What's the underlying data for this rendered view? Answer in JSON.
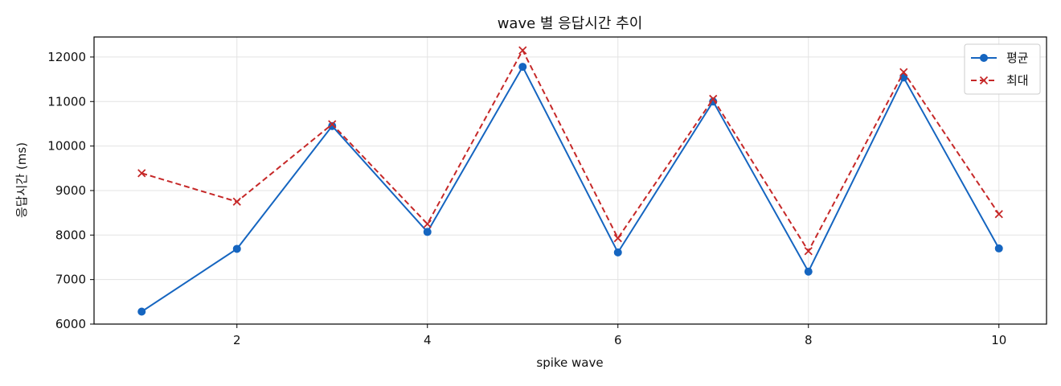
{
  "chart_data": {
    "type": "line",
    "title": "wave 별 응답시간 추이",
    "xlabel": "spike wave",
    "ylabel": "응답시간 (ms)",
    "x": [
      1,
      2,
      3,
      4,
      5,
      6,
      7,
      8,
      9,
      10
    ],
    "xlim": [
      0.5,
      10.5
    ],
    "ylim": [
      6000,
      12450
    ],
    "xticks": [
      2,
      4,
      6,
      8,
      10
    ],
    "yticks": [
      6000,
      7000,
      8000,
      9000,
      10000,
      11000,
      12000
    ],
    "grid": true,
    "legend_position": "top-right",
    "series": [
      {
        "name": "평균",
        "color": "#1565c0",
        "line_style": "solid",
        "marker": "circle",
        "values": [
          6280,
          7690,
          10450,
          8070,
          11780,
          7610,
          11000,
          7180,
          11540,
          7700
        ]
      },
      {
        "name": "최대",
        "color": "#c62828",
        "line_style": "dashed",
        "marker": "x",
        "values": [
          9390,
          8750,
          10490,
          8250,
          12150,
          7930,
          11060,
          7640,
          11660,
          8470
        ]
      }
    ]
  }
}
